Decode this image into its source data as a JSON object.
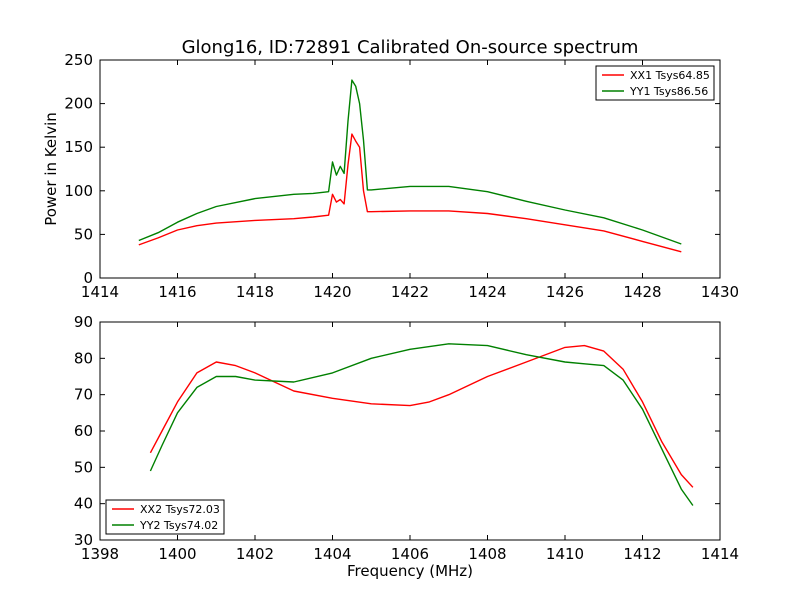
{
  "chart_data": [
    {
      "type": "line",
      "title": "Glong16, ID:72891 Calibrated On-source spectrum",
      "xlabel": "",
      "ylabel": "Power in Kelvin",
      "xlim": [
        1414,
        1430
      ],
      "ylim": [
        0,
        250
      ],
      "xticks": [
        "1414",
        "1416",
        "1418",
        "1420",
        "1422",
        "1424",
        "1426",
        "1428",
        "1430"
      ],
      "yticks": [
        "0",
        "50",
        "100",
        "150",
        "200",
        "250"
      ],
      "grid": false,
      "legend_position": "top-right",
      "series": [
        {
          "name": "XX1 Tsys64.85",
          "color": "#ff0000",
          "x": [
            1415.0,
            1415.5,
            1416.0,
            1416.5,
            1417.0,
            1418.0,
            1419.0,
            1419.5,
            1419.9,
            1420.0,
            1420.1,
            1420.2,
            1420.3,
            1420.4,
            1420.5,
            1420.6,
            1420.7,
            1420.8,
            1420.9,
            1421.0,
            1422.0,
            1423.0,
            1424.0,
            1425.0,
            1426.0,
            1427.0,
            1428.0,
            1429.0
          ],
          "y": [
            38,
            46,
            55,
            60,
            63,
            66,
            68,
            70,
            72,
            96,
            87,
            90,
            85,
            130,
            165,
            157,
            150,
            100,
            76,
            76,
            77,
            77,
            74,
            68,
            61,
            54,
            42,
            30
          ]
        },
        {
          "name": "YY1 Tsys86.56",
          "color": "#008000",
          "x": [
            1415.0,
            1415.5,
            1416.0,
            1416.5,
            1417.0,
            1418.0,
            1419.0,
            1419.5,
            1419.9,
            1420.0,
            1420.1,
            1420.2,
            1420.3,
            1420.4,
            1420.5,
            1420.6,
            1420.7,
            1420.8,
            1420.9,
            1421.0,
            1422.0,
            1423.0,
            1424.0,
            1425.0,
            1426.0,
            1427.0,
            1428.0,
            1429.0
          ],
          "y": [
            43,
            52,
            64,
            74,
            82,
            91,
            96,
            97,
            99,
            133,
            118,
            128,
            120,
            180,
            227,
            220,
            200,
            158,
            101,
            101,
            105,
            105,
            99,
            88,
            78,
            69,
            55,
            39
          ]
        }
      ]
    },
    {
      "type": "line",
      "title": "",
      "xlabel": "Frequency (MHz)",
      "ylabel": "",
      "xlim": [
        1398,
        1414
      ],
      "ylim": [
        30,
        90
      ],
      "xticks": [
        "1398",
        "1400",
        "1402",
        "1404",
        "1406",
        "1408",
        "1410",
        "1412",
        "1414"
      ],
      "yticks": [
        "30",
        "40",
        "50",
        "60",
        "70",
        "80",
        "90"
      ],
      "grid": false,
      "legend_position": "bottom-left",
      "series": [
        {
          "name": "XX2 Tsys72.03",
          "color": "#ff0000",
          "x": [
            1399.3,
            1399.6,
            1400.0,
            1400.5,
            1401.0,
            1401.5,
            1402.0,
            1403.0,
            1404.0,
            1405.0,
            1406.0,
            1406.5,
            1407.0,
            1408.0,
            1409.0,
            1410.0,
            1410.5,
            1411.0,
            1411.5,
            1412.0,
            1412.5,
            1413.0,
            1413.3
          ],
          "y": [
            54,
            60,
            68,
            76,
            79,
            78,
            76,
            71,
            69,
            67.5,
            67,
            68,
            70,
            75,
            79,
            83,
            83.5,
            82,
            77,
            68,
            57,
            48,
            44.5
          ]
        },
        {
          "name": "YY2 Tsys74.02",
          "color": "#008000",
          "x": [
            1399.3,
            1399.6,
            1400.0,
            1400.5,
            1401.0,
            1401.5,
            1402.0,
            1403.0,
            1404.0,
            1405.0,
            1406.0,
            1407.0,
            1408.0,
            1409.0,
            1410.0,
            1410.5,
            1411.0,
            1411.5,
            1412.0,
            1412.5,
            1413.0,
            1413.3
          ],
          "y": [
            49,
            56,
            65,
            72,
            75,
            75,
            74,
            73.5,
            76,
            80,
            82.5,
            84,
            83.5,
            81,
            79,
            78.5,
            78,
            74,
            66,
            55,
            44,
            39.5
          ]
        }
      ]
    }
  ]
}
